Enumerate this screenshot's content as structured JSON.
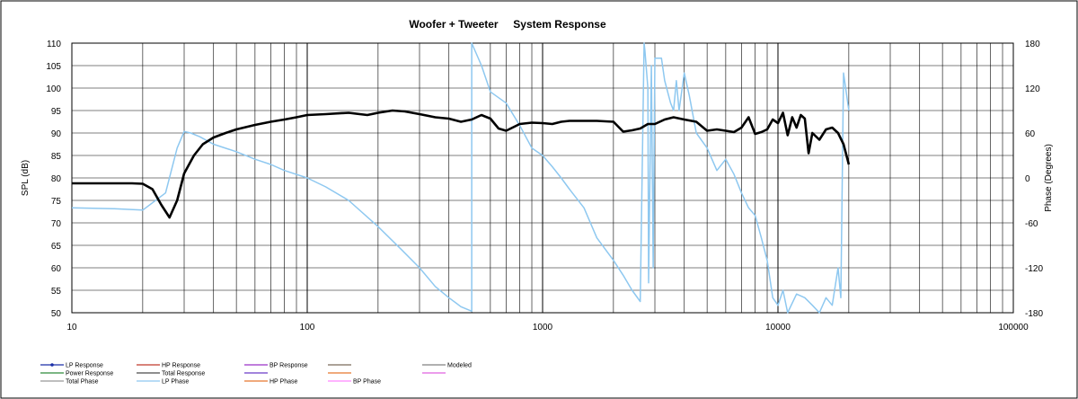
{
  "chart_data": {
    "type": "line",
    "title": "Woofer + Tweeter     System Response",
    "xlabel": "",
    "ylabel": "SPL (dB)",
    "y2label": "Phase (Degrees)",
    "xscale": "log",
    "xlim": [
      10,
      100000
    ],
    "ylim": [
      50,
      110
    ],
    "y2lim": [
      -180,
      180
    ],
    "grid": true,
    "legend_position": "bottom",
    "x_ticks": [
      "10",
      "100",
      "1000",
      "10000",
      "100000"
    ],
    "y_ticks": [
      "50",
      "55",
      "60",
      "65",
      "70",
      "75",
      "80",
      "85",
      "90",
      "95",
      "100",
      "105",
      "110"
    ],
    "y2_ticks": [
      "-180",
      "-120",
      "-60",
      "0",
      "60",
      "120",
      "180"
    ],
    "legend": [
      {
        "label": "LP Response",
        "color": "#1a2fa8",
        "marker": true
      },
      {
        "label": "HP Response",
        "color": "#c0392b",
        "marker": false
      },
      {
        "label": "BP Response",
        "color": "#9b30c8",
        "marker": false
      },
      {
        "label": "",
        "color": "#7a6a5a",
        "marker": false
      },
      {
        "label": "Modeled",
        "color": "#808080",
        "marker": false
      },
      {
        "label": "Power Response",
        "color": "#2e8b3a",
        "marker": false
      },
      {
        "label": "Total Response",
        "color": "#4a4a4a",
        "marker": false
      },
      {
        "label": "",
        "color": "#6a3ac8",
        "marker": false
      },
      {
        "label": "",
        "color": "#e8772e",
        "marker": false
      },
      {
        "label": "",
        "color": "#e060e0",
        "marker": false
      },
      {
        "label": "Total Phase",
        "color": "#999999",
        "marker": false
      },
      {
        "label": "LP Phase",
        "color": "#8ec8f0",
        "marker": false
      },
      {
        "label": "HP Phase",
        "color": "#e8772e",
        "marker": false
      },
      {
        "label": "BP Phase",
        "color": "#ff88ff",
        "marker": false
      }
    ],
    "series": [
      {
        "name": "Total Response",
        "axis": "left",
        "color": "#000000",
        "x": [
          10,
          15,
          18,
          20,
          22,
          24,
          26,
          28,
          30,
          33,
          36,
          40,
          45,
          50,
          60,
          70,
          80,
          90,
          100,
          120,
          150,
          180,
          200,
          230,
          260,
          300,
          350,
          400,
          450,
          500,
          550,
          600,
          650,
          700,
          800,
          900,
          1000,
          1100,
          1200,
          1300,
          1500,
          1700,
          2000,
          2200,
          2400,
          2600,
          2800,
          3000,
          3300,
          3600,
          4000,
          4500,
          5000,
          5500,
          6000,
          6500,
          7000,
          7500,
          8000,
          8500,
          9000,
          9500,
          10000,
          10500,
          11000,
          11500,
          12000,
          12500,
          13000,
          13500,
          14000,
          15000,
          16000,
          17000,
          18000,
          19000,
          20000
        ],
        "y": [
          78.8,
          78.8,
          78.8,
          78.7,
          77.5,
          74,
          71.2,
          75,
          81,
          85,
          87.5,
          89,
          90,
          90.8,
          91.8,
          92.5,
          93,
          93.5,
          94,
          94.2,
          94.5,
          94,
          94.5,
          95,
          94.8,
          94.2,
          93.5,
          93.2,
          92.5,
          93,
          94,
          93.2,
          91,
          90.5,
          92,
          92.3,
          92.2,
          92,
          92.5,
          92.7,
          92.7,
          92.7,
          92.5,
          90.3,
          90.6,
          91,
          92,
          92,
          93,
          93.5,
          93,
          92.5,
          90.5,
          90.8,
          90.5,
          90.2,
          91.2,
          93.5,
          89.8,
          90.2,
          90.8,
          93,
          92.2,
          94.5,
          89.5,
          93.5,
          91.2,
          94,
          93.2,
          85.5,
          90,
          88.5,
          90.8,
          91.2,
          90,
          87.5,
          83
        ]
      },
      {
        "name": "LP Phase",
        "axis": "right",
        "color": "#8ec8f0",
        "x": [
          10,
          15,
          20,
          25,
          28,
          30,
          32,
          35,
          40,
          50,
          60,
          70,
          80,
          100,
          120,
          150,
          200,
          250,
          300,
          350,
          400,
          450,
          500,
          500,
          550,
          600,
          700,
          800,
          900,
          1000,
          1100,
          1200,
          1300,
          1500,
          1700,
          2000,
          2200,
          2400,
          2600,
          2700,
          2720,
          2800,
          2820,
          2900,
          2950,
          3000,
          3200,
          3300,
          3500,
          3600,
          3700,
          3800,
          4000,
          4200,
          4500,
          5000,
          5500,
          6000,
          6500,
          7000,
          7500,
          8000,
          8500,
          9000,
          9500,
          10000,
          10500,
          11000,
          12000,
          13000,
          14000,
          15000,
          16000,
          17000,
          18000,
          18500,
          19000,
          20000
        ],
        "y": [
          -40,
          -41,
          -43,
          -20,
          40,
          62,
          60,
          55,
          45,
          35,
          25,
          18,
          10,
          0,
          -12,
          -30,
          -65,
          -95,
          -120,
          -145,
          -160,
          -172,
          -178,
          180,
          150,
          115,
          100,
          70,
          40,
          30,
          15,
          0,
          -15,
          -40,
          -80,
          -110,
          -130,
          -150,
          -165,
          180,
          170,
          120,
          -140,
          150,
          -120,
          160,
          160,
          130,
          100,
          90,
          130,
          90,
          140,
          110,
          60,
          40,
          10,
          25,
          5,
          -20,
          -40,
          -50,
          -80,
          -110,
          -160,
          -170,
          -150,
          -180,
          -155,
          -160,
          -170,
          -180,
          -160,
          -170,
          -120,
          -160,
          140,
          90
        ]
      }
    ]
  }
}
